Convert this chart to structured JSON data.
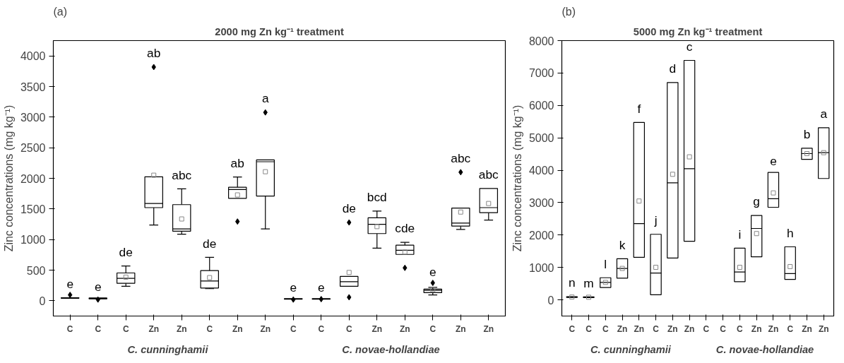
{
  "chart_data": [
    {
      "type": "box",
      "title": "2000 mg Zn kg⁻¹ treatment",
      "ylabel": "Zinc concentrations (mg kg⁻¹)",
      "categories": [
        "C",
        "C",
        "C",
        "Zn",
        "Zn",
        "C",
        "Zn",
        "Zn",
        "C",
        "C",
        "C",
        "Zn",
        "Zn",
        "C",
        "Zn",
        "Zn"
      ],
      "boxes": [
        {
          "low": 40,
          "q1": 40,
          "median": 45,
          "q3": 50,
          "high": 50,
          "outliers": [
            95
          ]
        },
        {
          "low": 30,
          "q1": 30,
          "median": 38,
          "q3": 45,
          "high": 45,
          "outliers": [
            19
          ]
        },
        {
          "low": 235,
          "q1": 284,
          "median": 367,
          "q3": 454,
          "high": 568,
          "mean": 386
        },
        {
          "low": 1237,
          "q1": 1521,
          "median": 1589,
          "q3": 2025,
          "high": 2025,
          "mean": 2051,
          "outliers": [
            3818
          ]
        },
        {
          "low": 1086,
          "q1": 1135,
          "median": 1173,
          "q3": 1570,
          "high": 1828,
          "mean": 1336
        },
        {
          "low": 197,
          "q1": 208,
          "median": 322,
          "q3": 492,
          "high": 708,
          "mean": 378
        },
        {
          "low": 1673,
          "q1": 1673,
          "median": 1817,
          "q3": 1854,
          "high": 2021,
          "mean": 1729,
          "outliers": [
            1294
          ]
        },
        {
          "low": 1173,
          "q1": 1711,
          "median": 2271,
          "q3": 2301,
          "high": 2301,
          "mean": 2108,
          "outliers": [
            3077
          ]
        },
        {
          "low": 25,
          "q1": 25,
          "median": 30,
          "q3": 35,
          "high": 35,
          "outliers": [
            19
          ]
        },
        {
          "low": 25,
          "q1": 25,
          "median": 30,
          "q3": 35,
          "high": 35,
          "outliers": [
            26
          ]
        },
        {
          "low": 235,
          "q1": 235,
          "median": 310,
          "q3": 397,
          "high": 397,
          "mean": 462,
          "outliers": [
            1279,
            57
          ]
        },
        {
          "low": 859,
          "q1": 1097,
          "median": 1249,
          "q3": 1355,
          "high": 1465,
          "mean": 1211
        },
        {
          "low": 757,
          "q1": 757,
          "median": 825,
          "q3": 908,
          "high": 954,
          "mean": 795,
          "outliers": [
            537
          ]
        },
        {
          "low": 95,
          "q1": 132,
          "median": 170,
          "q3": 189,
          "high": 219,
          "mean": 182,
          "outliers": [
            291
          ]
        },
        {
          "low": 1166,
          "q1": 1219,
          "median": 1268,
          "q3": 1514,
          "high": 1514,
          "mean": 1449,
          "outliers": [
            2100
          ]
        },
        {
          "low": 1317,
          "q1": 1438,
          "median": 1521,
          "q3": 1835,
          "high": 1835,
          "mean": 1589
        }
      ],
      "value_labels": [
        "e",
        "e",
        "de",
        "ab",
        "abc",
        "de",
        "ab",
        "a",
        "e",
        "e",
        "de",
        "bcd",
        "cde",
        "e",
        "abc",
        "abc"
      ],
      "ylim": [
        -250,
        4250
      ],
      "yticks": [
        0,
        500,
        1000,
        1500,
        2000,
        2500,
        3000,
        3500,
        4000
      ],
      "grid": false,
      "annotations": [
        "(a)",
        "C. cunninghamii",
        "C. novae-hollandiae"
      ]
    },
    {
      "type": "box",
      "title": "5000 mg Zn kg⁻¹ treatment",
      "ylabel": "Zinc concentrations (mg kg⁻¹)",
      "categories": [
        "C",
        "C",
        "C",
        "Zn",
        "Zn",
        "C",
        "Zn",
        "Zn",
        "C",
        "C",
        "C",
        "Zn",
        "Zn",
        "C",
        "Zn",
        "Zn"
      ],
      "boxes": [
        {
          "low": 75,
          "q1": 75,
          "median": 86,
          "q3": 95,
          "high": 95,
          "mean": 86
        },
        {
          "low": 70,
          "q1": 70,
          "median": 80,
          "q3": 90,
          "high": 90,
          "mean": 80
        },
        {
          "low": 380,
          "q1": 380,
          "median": 538,
          "q3": 682,
          "high": 682,
          "mean": 538
        },
        {
          "low": 667,
          "q1": 667,
          "median": 969,
          "q3": 1270,
          "high": 1270,
          "mean": 969
        },
        {
          "low": 1313,
          "q1": 1313,
          "median": 2353,
          "q3": 5474,
          "high": 5474,
          "mean": 3049
        },
        {
          "low": 158,
          "q1": 158,
          "median": 825,
          "q3": 2023,
          "high": 2023,
          "mean": 1004
        },
        {
          "low": 1291,
          "q1": 1291,
          "median": 3609,
          "q3": 6708,
          "high": 6708,
          "mean": 3874
        },
        {
          "low": 1808,
          "q1": 1808,
          "median": 4047,
          "q3": 7390,
          "high": 7390,
          "mean": 4413
        },
        null,
        null,
        {
          "low": 560,
          "q1": 560,
          "median": 861,
          "q3": 1593,
          "high": 1593,
          "mean": 1004
        },
        {
          "low": 1327,
          "q1": 1327,
          "median": 2203,
          "q3": 2604,
          "high": 2604,
          "mean": 2045
        },
        {
          "low": 2856,
          "q1": 2856,
          "median": 3121,
          "q3": 3932,
          "high": 3932,
          "mean": 3300
        },
        {
          "low": 631,
          "q1": 631,
          "median": 811,
          "q3": 1636,
          "high": 1636,
          "mean": 1026
        },
        {
          "low": 4334,
          "q1": 4334,
          "median": 4513,
          "q3": 4678,
          "high": 4678,
          "mean": 4513
        },
        {
          "low": 3745,
          "q1": 3745,
          "median": 4542,
          "q3": 5309,
          "high": 5309,
          "mean": 4542
        }
      ],
      "value_labels": [
        "n",
        "m",
        "l",
        "k",
        "f",
        "j",
        "d",
        "c",
        null,
        null,
        "i",
        "g",
        "e",
        "h",
        "b",
        "a"
      ],
      "ylim": [
        -500,
        8000
      ],
      "yticks": [
        0,
        1000,
        2000,
        3000,
        4000,
        5000,
        6000,
        7000,
        8000
      ],
      "grid": false,
      "annotations": [
        "(b)",
        "C. cunninghamii",
        "C. novae-hollandiae"
      ]
    }
  ]
}
